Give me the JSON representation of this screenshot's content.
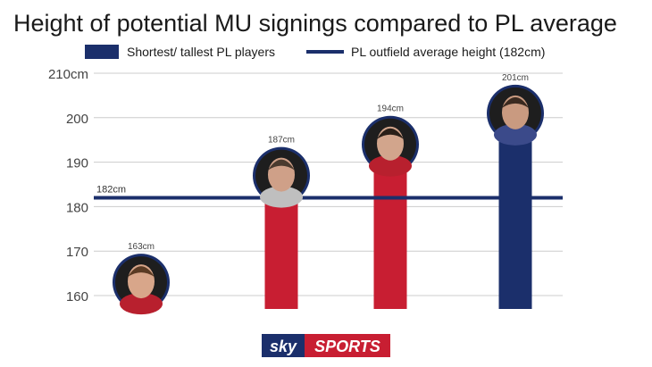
{
  "chart_data": {
    "type": "bar",
    "title": "Height of potential MU signings compared to PL average",
    "legend": [
      {
        "label": "Shortest/ tallest PL players",
        "color": "#1b2f6b",
        "marker": "box"
      },
      {
        "label": "PL outfield average height (182cm)",
        "color": "#1b2f6b",
        "marker": "line"
      }
    ],
    "ylim": [
      157,
      210
    ],
    "yticks": [
      {
        "value": 210,
        "label": "210cm"
      },
      {
        "value": 200,
        "label": "200"
      },
      {
        "value": 190,
        "label": "190"
      },
      {
        "value": 180,
        "label": "180"
      },
      {
        "value": 170,
        "label": "170"
      },
      {
        "value": 160,
        "label": "160"
      }
    ],
    "average": {
      "value": 182,
      "label": "182cm"
    },
    "bars": [
      {
        "value": 163,
        "label": "163cm",
        "color": "#1b2f6b",
        "avatar": "player-1-photo"
      },
      {
        "value": 187,
        "label": "187cm",
        "color": "#c81e32",
        "avatar": "player-2-photo"
      },
      {
        "value": 194,
        "label": "194cm",
        "color": "#c81e32",
        "avatar": "player-3-photo"
      },
      {
        "value": 201,
        "label": "201cm",
        "color": "#1b2f6b",
        "avatar": "player-4-photo"
      }
    ],
    "grid": true
  },
  "branding": {
    "sky": "sky",
    "sports": "SPORTS"
  }
}
